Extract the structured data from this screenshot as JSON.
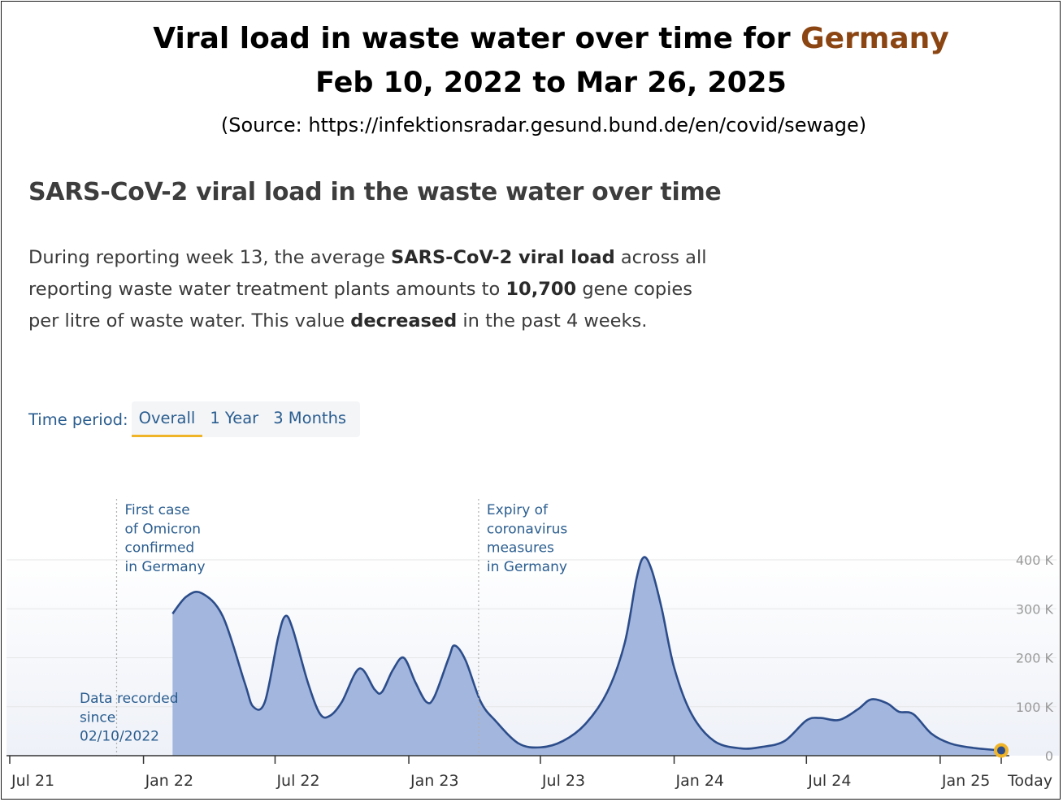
{
  "header": {
    "title_prefix": "Viral load in waste water over time for ",
    "title_country": "Germany",
    "date_range": "Feb 10, 2022 to Mar 26, 2025",
    "source": "(Source: https://infektionsradar.gesund.bund.de/en/covid/sewage)"
  },
  "section": {
    "heading": "SARS-CoV-2 viral load in the waste water over time",
    "desc_1": "During reporting week 13, the average ",
    "desc_2": "SARS-CoV-2 viral load",
    "desc_3": " across all reporting waste water treatment plants amounts to ",
    "desc_4": "10,700",
    "desc_5": " gene copies per litre of waste water. This value ",
    "desc_6": "decreased",
    "desc_7": " in the past 4 weeks."
  },
  "period": {
    "label": "Time period:",
    "tabs": [
      {
        "label": "Overall",
        "active": true
      },
      {
        "label": "1 Year",
        "active": false
      },
      {
        "label": "3 Months",
        "active": false
      }
    ]
  },
  "colors": {
    "fill": "#a3b6de",
    "line": "#2c4d8a",
    "marker": "#f0b429",
    "marker_core": "#2c4d8a",
    "annotation": "#2a5d8f",
    "grid": "#e6e6e6",
    "title_accent": "#8b4513"
  },
  "chart_data": {
    "type": "area",
    "xlim": [
      "2021-07-01",
      "2025-04-01"
    ],
    "ylim": [
      0,
      400000
    ],
    "x_ticks": [
      "Jul 21",
      "Jan 22",
      "Jul 22",
      "Jan 23",
      "Jul 23",
      "Jan 24",
      "Jul 24",
      "Jan 25",
      "Today"
    ],
    "x_tick_dates": [
      "2021-07-01",
      "2022-01-01",
      "2022-07-01",
      "2023-01-01",
      "2023-07-01",
      "2024-01-01",
      "2024-07-01",
      "2025-01-01",
      "2025-03-26"
    ],
    "y_ticks": [
      "0",
      "100 K",
      "200 K",
      "300 K",
      "400 K"
    ],
    "y_tick_values": [
      0,
      100000,
      200000,
      300000,
      400000
    ],
    "series": [
      {
        "values": [
          {
            "x": "2022-02-10",
            "y": 290000
          },
          {
            "x": "2022-03-01",
            "y": 325000
          },
          {
            "x": "2022-03-22",
            "y": 332000
          },
          {
            "x": "2022-04-20",
            "y": 285000
          },
          {
            "x": "2022-05-20",
            "y": 150000
          },
          {
            "x": "2022-06-01",
            "y": 100000
          },
          {
            "x": "2022-06-17",
            "y": 110000
          },
          {
            "x": "2022-07-05",
            "y": 240000
          },
          {
            "x": "2022-07-15",
            "y": 285000
          },
          {
            "x": "2022-07-25",
            "y": 260000
          },
          {
            "x": "2022-08-15",
            "y": 150000
          },
          {
            "x": "2022-09-01",
            "y": 85000
          },
          {
            "x": "2022-09-15",
            "y": 82000
          },
          {
            "x": "2022-10-01",
            "y": 110000
          },
          {
            "x": "2022-10-25",
            "y": 178000
          },
          {
            "x": "2022-11-15",
            "y": 135000
          },
          {
            "x": "2022-11-25",
            "y": 130000
          },
          {
            "x": "2022-12-10",
            "y": 175000
          },
          {
            "x": "2022-12-25",
            "y": 200000
          },
          {
            "x": "2023-01-10",
            "y": 150000
          },
          {
            "x": "2023-01-25",
            "y": 110000
          },
          {
            "x": "2023-02-05",
            "y": 120000
          },
          {
            "x": "2023-02-25",
            "y": 200000
          },
          {
            "x": "2023-03-05",
            "y": 225000
          },
          {
            "x": "2023-03-20",
            "y": 195000
          },
          {
            "x": "2023-04-10",
            "y": 110000
          },
          {
            "x": "2023-05-01",
            "y": 70000
          },
          {
            "x": "2023-06-01",
            "y": 25000
          },
          {
            "x": "2023-07-01",
            "y": 17000
          },
          {
            "x": "2023-08-01",
            "y": 30000
          },
          {
            "x": "2023-09-01",
            "y": 65000
          },
          {
            "x": "2023-10-01",
            "y": 130000
          },
          {
            "x": "2023-10-25",
            "y": 230000
          },
          {
            "x": "2023-11-10",
            "y": 360000
          },
          {
            "x": "2023-11-20",
            "y": 405000
          },
          {
            "x": "2023-12-01",
            "y": 380000
          },
          {
            "x": "2023-12-15",
            "y": 300000
          },
          {
            "x": "2024-01-01",
            "y": 180000
          },
          {
            "x": "2024-01-25",
            "y": 85000
          },
          {
            "x": "2024-02-25",
            "y": 30000
          },
          {
            "x": "2024-04-01",
            "y": 15000
          },
          {
            "x": "2024-05-01",
            "y": 18000
          },
          {
            "x": "2024-06-01",
            "y": 30000
          },
          {
            "x": "2024-07-01",
            "y": 72000
          },
          {
            "x": "2024-07-20",
            "y": 77000
          },
          {
            "x": "2024-08-15",
            "y": 73000
          },
          {
            "x": "2024-09-10",
            "y": 95000
          },
          {
            "x": "2024-09-28",
            "y": 115000
          },
          {
            "x": "2024-10-20",
            "y": 107000
          },
          {
            "x": "2024-11-05",
            "y": 90000
          },
          {
            "x": "2024-11-25",
            "y": 85000
          },
          {
            "x": "2024-12-20",
            "y": 45000
          },
          {
            "x": "2025-01-15",
            "y": 25000
          },
          {
            "x": "2025-02-15",
            "y": 16000
          },
          {
            "x": "2025-03-26",
            "y": 10700
          }
        ]
      }
    ],
    "annotations": [
      {
        "date": "2021-11-25",
        "lines": [
          "First case",
          "of Omicron",
          "confirmed",
          "in Germany"
        ]
      },
      {
        "date": "2023-04-07",
        "lines": [
          "Expiry of",
          "coronavirus",
          "measures",
          "in Germany"
        ]
      },
      {
        "date": "2022-02-10",
        "lines": [
          "Data recorded",
          "since",
          "02/10/2022"
        ]
      }
    ],
    "grid": true
  }
}
